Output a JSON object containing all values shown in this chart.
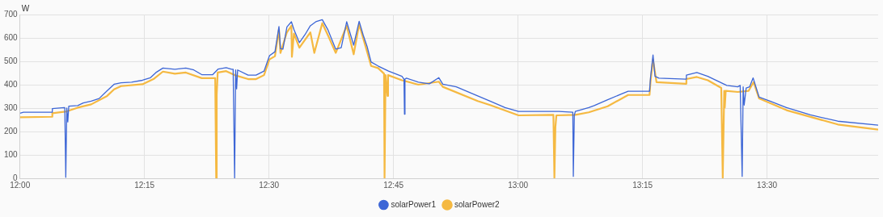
{
  "chart_data": {
    "type": "line",
    "ylabel": "W",
    "xlim": [
      12,
      13.723
    ],
    "ylim": [
      0,
      700
    ],
    "xticks": [
      {
        "value": 12,
        "label": "12:00"
      },
      {
        "value": 12.25,
        "label": "12:15"
      },
      {
        "value": 12.5,
        "label": "12:30"
      },
      {
        "value": 12.75,
        "label": "12:45"
      },
      {
        "value": 13,
        "label": "13:00"
      },
      {
        "value": 13.25,
        "label": "13:15"
      },
      {
        "value": 13.5,
        "label": "13:30"
      }
    ],
    "yticks": [
      0,
      100,
      200,
      300,
      400,
      500,
      600,
      700
    ],
    "grid": true,
    "legend": "bottom",
    "marker": "none",
    "line_style": "solid",
    "series": [
      {
        "name": "solarPower1",
        "color": "#3d66d6",
        "x": [
          12.0,
          12.007,
          12.064,
          12.065,
          12.089,
          12.09,
          12.092,
          12.094,
          12.096,
          12.098,
          12.116,
          12.127,
          12.143,
          12.159,
          12.175,
          12.189,
          12.203,
          12.224,
          12.246,
          12.262,
          12.273,
          12.287,
          12.311,
          12.333,
          12.349,
          12.365,
          12.387,
          12.398,
          12.414,
          12.425,
          12.428,
          12.431,
          12.433,
          12.435,
          12.437,
          12.458,
          12.474,
          12.49,
          12.501,
          12.512,
          12.52,
          12.523,
          12.528,
          12.536,
          12.545,
          12.55,
          12.561,
          12.572,
          12.583,
          12.594,
          12.607,
          12.618,
          12.634,
          12.645,
          12.656,
          12.67,
          12.681,
          12.689,
          12.697,
          12.705,
          12.719,
          12.74,
          12.767,
          12.771,
          12.772,
          12.773,
          12.776,
          12.8,
          12.822,
          12.841,
          12.849,
          12.876,
          12.919,
          12.944,
          12.974,
          13.001,
          13.028,
          13.082,
          13.11,
          13.111,
          13.113,
          13.115,
          13.142,
          13.153,
          13.18,
          13.207,
          13.221,
          13.264,
          13.266,
          13.271,
          13.275,
          13.283,
          13.337,
          13.338,
          13.359,
          13.381,
          13.419,
          13.441,
          13.446,
          13.45,
          13.452,
          13.454,
          13.458,
          13.465,
          13.472,
          13.484,
          13.506,
          13.539,
          13.587,
          13.642,
          13.723
        ],
        "values": [
          278,
          282,
          282,
          298,
          302,
          302,
          4,
          300,
          241,
          308,
          311,
          322,
          330,
          341,
          374,
          402,
          408,
          411,
          419,
          430,
          452,
          471,
          466,
          471,
          463,
          443,
          443,
          467,
          473,
          466,
          466,
          0,
          463,
          382,
          463,
          441,
          441,
          458,
          524,
          541,
          649,
          554,
          552,
          647,
          669,
          636,
          580,
          613,
          652,
          669,
          678,
          636,
          552,
          558,
          669,
          569,
          671,
          613,
          563,
          497,
          480,
          458,
          436,
          424,
          274,
          424,
          428,
          411,
          404,
          430,
          402,
          391,
          352,
          330,
          302,
          286,
          286,
          286,
          282,
          8,
          269,
          286,
          302,
          311,
          336,
          360,
          372,
          372,
          430,
          527,
          436,
          428,
          424,
          441,
          452,
          436,
          397,
          391,
          397,
          8,
          391,
          313,
          386,
          391,
          429,
          347,
          330,
          302,
          271,
          244,
          227
        ]
      },
      {
        "name": "solarPower2",
        "color": "#f5b942",
        "x": [
          12.0,
          12.064,
          12.065,
          12.094,
          12.116,
          12.143,
          12.175,
          12.189,
          12.203,
          12.246,
          12.268,
          12.287,
          12.311,
          12.333,
          12.365,
          12.392,
          12.394,
          12.395,
          12.397,
          12.414,
          12.431,
          12.458,
          12.474,
          12.49,
          12.501,
          12.512,
          12.52,
          12.523,
          12.536,
          12.545,
          12.546,
          12.55,
          12.561,
          12.583,
          12.591,
          12.607,
          12.618,
          12.634,
          12.656,
          12.67,
          12.681,
          12.697,
          12.705,
          12.719,
          12.731,
          12.732,
          12.734,
          12.738,
          12.739,
          12.767,
          12.8,
          12.841,
          12.849,
          12.919,
          12.944,
          13.001,
          13.071,
          13.073,
          13.075,
          13.077,
          13.115,
          13.142,
          13.18,
          13.221,
          13.264,
          13.266,
          13.271,
          13.278,
          13.337,
          13.338,
          13.359,
          13.381,
          13.408,
          13.411,
          13.414,
          13.415,
          13.417,
          13.441,
          13.463,
          13.473,
          13.484,
          13.539,
          13.642,
          13.723
        ],
        "values": [
          261,
          263,
          278,
          286,
          302,
          316,
          352,
          380,
          394,
          402,
          424,
          456,
          447,
          452,
          428,
          428,
          0,
          358,
          452,
          458,
          441,
          424,
          424,
          441,
          508,
          522,
          636,
          536,
          624,
          652,
          519,
          619,
          558,
          624,
          536,
          663,
          613,
          536,
          652,
          530,
          658,
          541,
          480,
          471,
          447,
          2,
          441,
          352,
          441,
          419,
          400,
          413,
          391,
          330,
          313,
          269,
          271,
          2,
          219,
          269,
          271,
          282,
          308,
          356,
          356,
          413,
          508,
          411,
          404,
          424,
          433,
          419,
          386,
          2,
          374,
          302,
          374,
          369,
          374,
          411,
          341,
          291,
          230,
          208
        ]
      }
    ]
  }
}
